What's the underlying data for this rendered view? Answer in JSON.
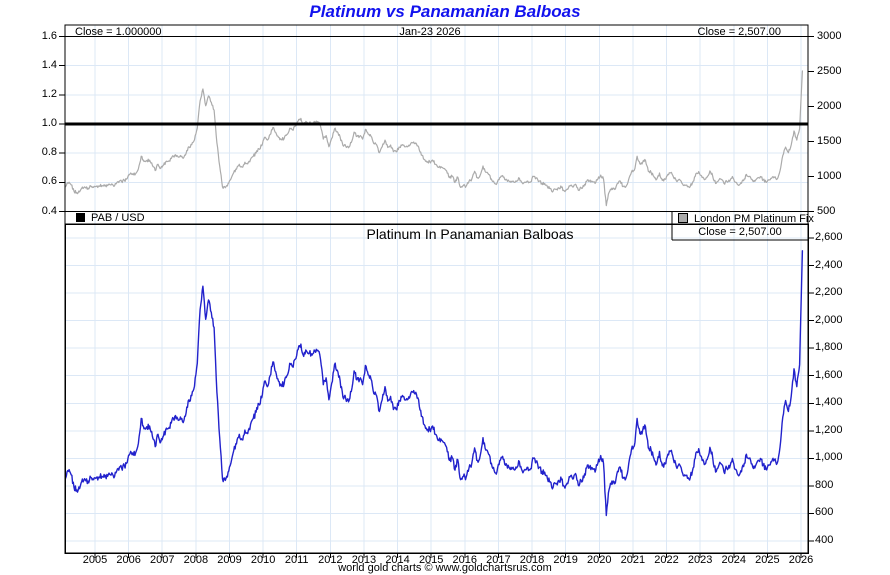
{
  "page": {
    "title": "Platinum vs Panamanian Balboas",
    "footer": "world gold charts © www.goldchartsrus.com"
  },
  "top_panel": {
    "close_left_label": "Close = 1.000000",
    "date_label": "Jan-23  2026",
    "close_right_label": "Close = 2,507.00",
    "legend_pab": "PAB / USD",
    "legend_platinum": "London PM Platinum Fix",
    "left_ticks": [
      [
        "1.6",
        1.6
      ],
      [
        "1.4",
        1.4
      ],
      [
        "1.2",
        1.2
      ],
      [
        "1.0",
        1.0
      ],
      [
        "0.8",
        0.8
      ],
      [
        "0.6",
        0.6
      ],
      [
        "0.4",
        0.4
      ]
    ],
    "right_ticks": [
      [
        "3000",
        3000
      ],
      [
        "2500",
        2500
      ],
      [
        "2000",
        2000
      ],
      [
        "1500",
        1500
      ],
      [
        "1000",
        1000
      ],
      [
        "500",
        500
      ]
    ]
  },
  "bottom_panel": {
    "title": "Platinum In Panamanian Balboas",
    "close_label": "Close = 2,507.00",
    "right_ticks": [
      [
        "2,600",
        2600
      ],
      [
        "2,400",
        2400
      ],
      [
        "2,200",
        2200
      ],
      [
        "2,000",
        2000
      ],
      [
        "1,800",
        1800
      ],
      [
        "1,600",
        1600
      ],
      [
        "1,400",
        1400
      ],
      [
        "1,200",
        1200
      ],
      [
        "1,000",
        1000
      ],
      [
        "800",
        800
      ],
      [
        "600",
        600
      ],
      [
        "400",
        400
      ]
    ]
  },
  "x_axis": {
    "year_ticks": [
      [
        "2005",
        2005
      ],
      [
        "2006",
        2006
      ],
      [
        "2007",
        2007
      ],
      [
        "2008",
        2008
      ],
      [
        "2009",
        2009
      ],
      [
        "2010",
        2010
      ],
      [
        "2011",
        2011
      ],
      [
        "2012",
        2012
      ],
      [
        "2013",
        2013
      ],
      [
        "2014",
        2014
      ],
      [
        "2015",
        2015
      ],
      [
        "2016",
        2016
      ],
      [
        "2017",
        2017
      ],
      [
        "2018",
        2018
      ],
      [
        "2019",
        2019
      ],
      [
        "2020",
        2020
      ],
      [
        "2021",
        2021
      ],
      [
        "2022",
        2022
      ],
      [
        "2023",
        2023
      ],
      [
        "2024",
        2024
      ],
      [
        "2025",
        2025
      ],
      [
        "2026",
        2026
      ]
    ]
  },
  "colors": {
    "title": "#1212EE",
    "platinum_usd_line": "#ABABAB",
    "platinum_pab_line": "#2222CC",
    "pab_usd_line": "#000000",
    "gridline": "#DCE8F6",
    "axis": "#000000",
    "background": "#FFFFFF",
    "platinum_swatch_fill": "#ABABAB"
  },
  "chart_data": {
    "type": "line",
    "description": "Two stacked panels. Top: PAB/USD exchange rate (flat black line at 1.0, left axis 0.4-1.6) overlaid with London PM Platinum Fix in USD (gray, right axis 500-3000). Bottom: same platinum price expressed in Panamanian Balboas (blue, right axis 400-2,600). Monthly values, Feb-2004 through Jan-23-2026.",
    "x_start_decimal_year": 2004.125,
    "x_step_years": 0.0833333,
    "x_range_years": [
      2004.1,
      2026.3
    ],
    "x_tick_years": [
      2005,
      2006,
      2007,
      2008,
      2009,
      2010,
      2011,
      2012,
      2013,
      2014,
      2015,
      2016,
      2017,
      2018,
      2019,
      2020,
      2021,
      2022,
      2023,
      2024,
      2025,
      2026
    ],
    "top_left_ylim": [
      0.4,
      1.6
    ],
    "top_right_ylim": [
      500,
      3000
    ],
    "bottom_ylim": [
      400,
      2600
    ],
    "pab_usd_rate_constant": 1.0,
    "last_close": {
      "date_label": "Jan-23 2026",
      "platinum_pab": 2507.0,
      "pab_usd": 1.0
    },
    "texture_amplitude": 22,
    "series_names": [
      "PAB / USD",
      "London PM Platinum Fix",
      "Platinum In Panamanian Balboas"
    ],
    "platinum_monthly_pab": [
      855,
      905,
      880,
      790,
      770,
      780,
      850,
      845,
      835,
      860,
      845,
      860,
      865,
      870,
      865,
      870,
      880,
      875,
      895,
      915,
      930,
      945,
      970,
      1035,
      1040,
      1040,
      1110,
      1290,
      1215,
      1230,
      1235,
      1160,
      1085,
      1175,
      1120,
      1165,
      1220,
      1225,
      1280,
      1305,
      1290,
      1300,
      1260,
      1330,
      1425,
      1455,
      1525,
      1690,
      2080,
      2250,
      2010,
      2150,
      2060,
      1950,
      1480,
      1150,
      850,
      840,
      900,
      965,
      1055,
      1105,
      1175,
      1135,
      1205,
      1180,
      1245,
      1290,
      1335,
      1395,
      1440,
      1560,
      1520,
      1600,
      1700,
      1630,
      1560,
      1530,
      1540,
      1600,
      1690,
      1665,
      1720,
      1790,
      1830,
      1740,
      1780,
      1765,
      1750,
      1780,
      1785,
      1720,
      1535,
      1585,
      1425,
      1545,
      1680,
      1640,
      1565,
      1445,
      1435,
      1410,
      1485,
      1635,
      1570,
      1575,
      1535,
      1675,
      1605,
      1575,
      1470,
      1455,
      1340,
      1425,
      1520,
      1415,
      1450,
      1355,
      1355,
      1420,
      1445,
      1425,
      1425,
      1455,
      1480,
      1480,
      1425,
      1305,
      1245,
      1205,
      1210,
      1235,
      1175,
      1130,
      1140,
      1115,
      1080,
      985,
      1005,
      915,
      990,
      845,
      870,
      865,
      930,
      965,
      1075,
      985,
      1020,
      1150,
      1060,
      1030,
      965,
      910,
      905,
      985,
      1015,
      950,
      950,
      935,
      920,
      930,
      975,
      910,
      920,
      935,
      925,
      1000,
      980,
      935,
      905,
      900,
      850,
      830,
      790,
      815,
      840,
      845,
      795,
      820,
      865,
      850,
      890,
      805,
      840,
      860,
      930,
      935,
      930,
      900,
      965,
      1020,
      965,
      585,
      775,
      835,
      815,
      905,
      935,
      855,
      855,
      960,
      1065,
      1090,
      1290,
      1180,
      1205,
      1230,
      1075,
      1060,
      1000,
      960,
      1050,
      945,
      960,
      1030,
      1055,
      990,
      940,
      960,
      905,
      880,
      855,
      860,
      930,
      1040,
      1070,
      1010,
      955,
      990,
      1080,
      1005,
      900,
      940,
      960,
      900,
      930,
      930,
      1000,
      920,
      880,
      910,
      940,
      1030,
      1000,
      960,
      930,
      980,
      1000,
      950,
      920,
      950,
      975,
      990,
      965,
      1080,
      1300,
      1420,
      1340,
      1450,
      1650,
      1520,
      1680,
      2507
    ]
  }
}
